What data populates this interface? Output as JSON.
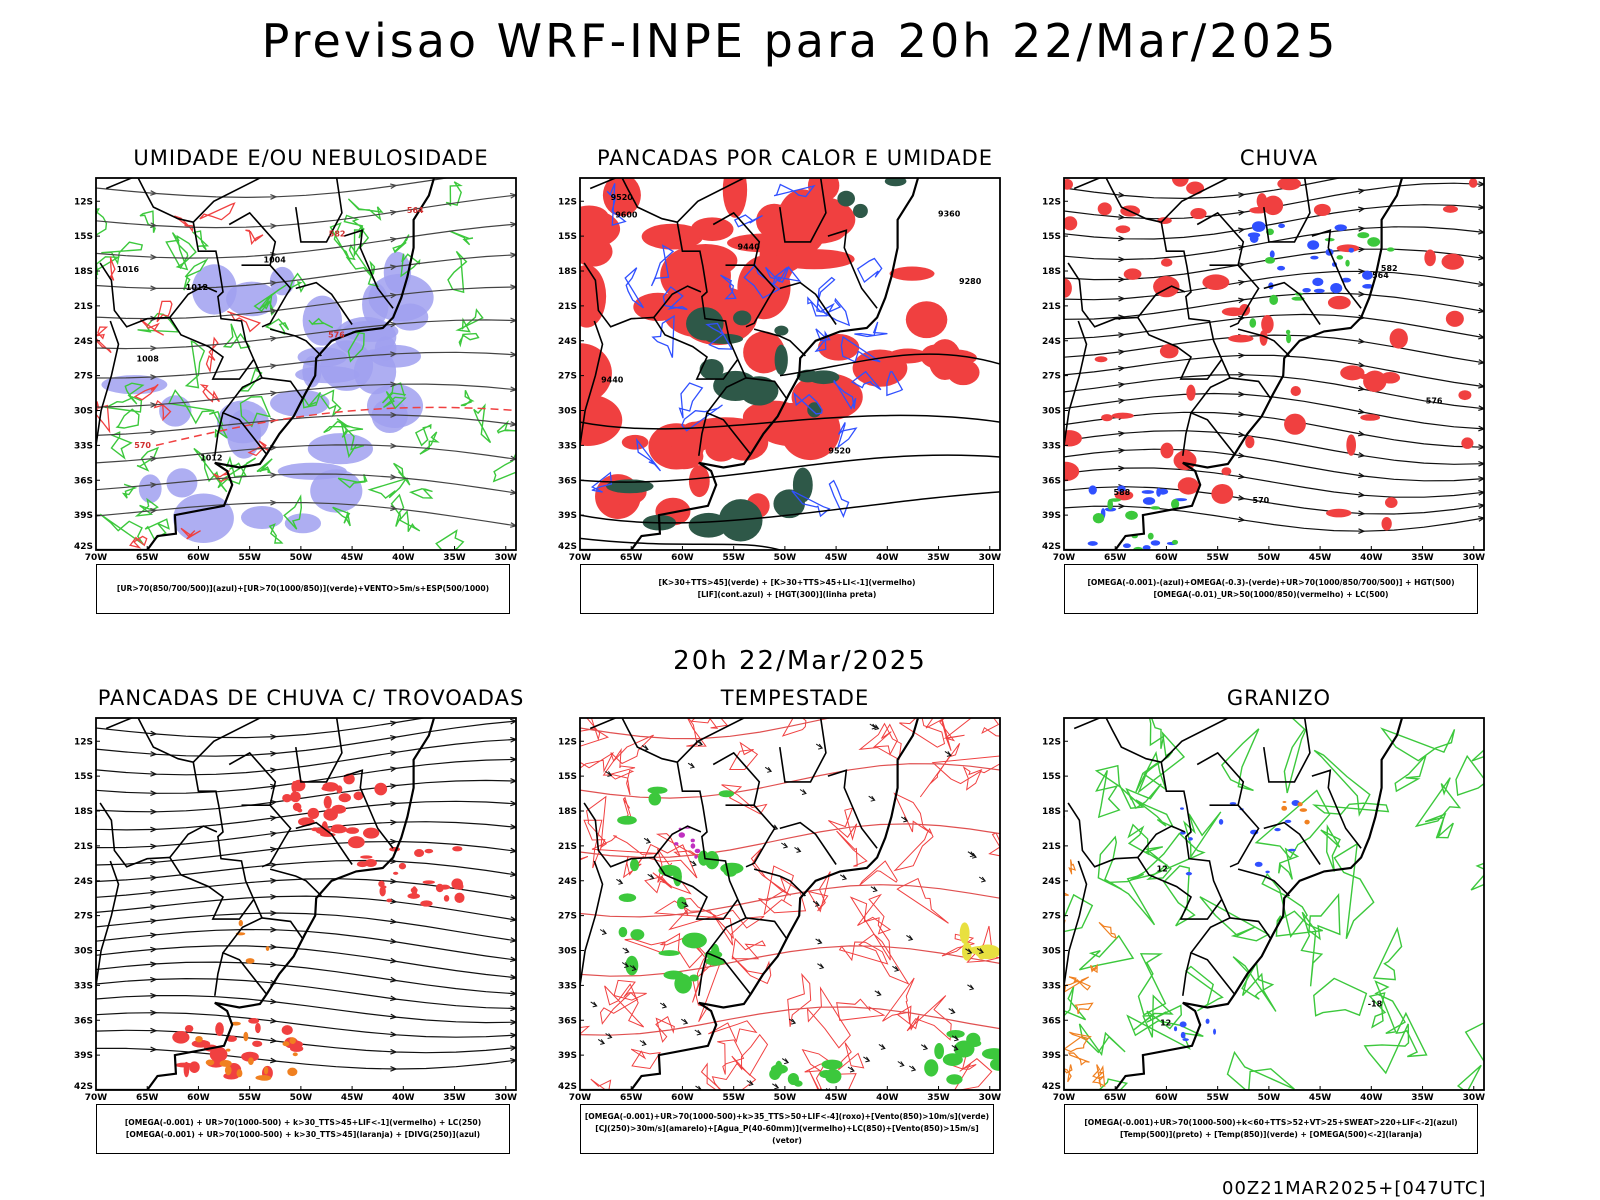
{
  "title": "Previsao WRF-INPE  para 20h 22/Mar/2025",
  "subtitle": "20h 22/Mar/2025",
  "footer": "00Z21MAR2025+[047UTC]",
  "axes": {
    "lat_labels": [
      "12S",
      "15S",
      "18S",
      "21S",
      "24S",
      "27S",
      "30S",
      "33S",
      "36S",
      "39S",
      "42S"
    ],
    "lon_labels": [
      "70W",
      "65W",
      "60W",
      "55W",
      "50W",
      "45W",
      "40W",
      "35W",
      "30W"
    ]
  },
  "colors": {
    "red": "#f04040",
    "green": "#3cc83c",
    "blue": "#3050ff",
    "lavender": "#a0a0f0",
    "darkgreen": "#2e5848",
    "orange": "#f08020",
    "yellow": "#e8e040",
    "magenta": "#c030c0"
  },
  "panels": [
    {
      "title": "UMIDADE E/OU NEBULOSIDADE",
      "legend": [
        "[UR>70(850/700/500)](azul)+[UR>70(1000/850)](verde)+VENTO>5m/s+ESP(500/1000)"
      ],
      "contour_labels": [
        "1016",
        "1012",
        "1008",
        "1004",
        "1012",
        "570",
        "564",
        "576",
        "582"
      ]
    },
    {
      "title": "PANCADAS POR CALOR E UMIDADE",
      "legend": [
        "[K>30+TTS>45](verde) + [K>30+TTS>45+LI<-1](vermelho)",
        "[LIF](cont.azul) + [HGT(300)](linha preta)"
      ],
      "contour_labels": [
        "9600",
        "9520",
        "9440",
        "9360",
        "9280",
        "9520",
        "9440"
      ]
    },
    {
      "title": "CHUVA",
      "legend": [
        "[OMEGA(-0.001)-(azul)+OMEGA(-0.3)-(verde)+UR>70(1000/850/700/500)] + HGT(500)",
        "[OMEGA(-0.01)_UR>50(1000/850)(vermelho) + LC(500)"
      ],
      "contour_labels": [
        "588",
        "582",
        "576",
        "570",
        "564"
      ]
    },
    {
      "title": "PANCADAS DE CHUVA C/ TROVOADAS",
      "legend": [
        "[OMEGA(-0.001) + UR>70(1000-500) + k>30_TTS>45+LIF<-1](vermelho) + LC(250)",
        "[OMEGA(-0.001) + UR>70(1000-500) + k>30_TTS>45](laranja) + [DIVG(250)](azul)"
      ],
      "contour_labels": []
    },
    {
      "title": "TEMPESTADE",
      "legend": [
        "[OMEGA(-0.001)+UR>70(1000-500)+k>35_TTS>50+LIF<-4](roxo)+[Vento(850)>10m/s](verde)",
        "[CJ(250)>30m/s](amarelo)+[Agua_P(40-60mm)](vermelho)+LC(850)+[Vento(850)>15m/s](vetor)"
      ],
      "contour_labels": []
    },
    {
      "title": "GRANIZO",
      "legend": [
        "[OMEGA(-0.001)+UR>70(1000-500)+k<60+TTS>52+VT>25+SWEAT>220+LIF<-2](azul)",
        "[Temp(500)](preto) + [Temp(850)](verde) + [OMEGA(500)<-2](laranja)"
      ],
      "contour_labels": [
        "12",
        "12",
        "-18"
      ]
    }
  ]
}
